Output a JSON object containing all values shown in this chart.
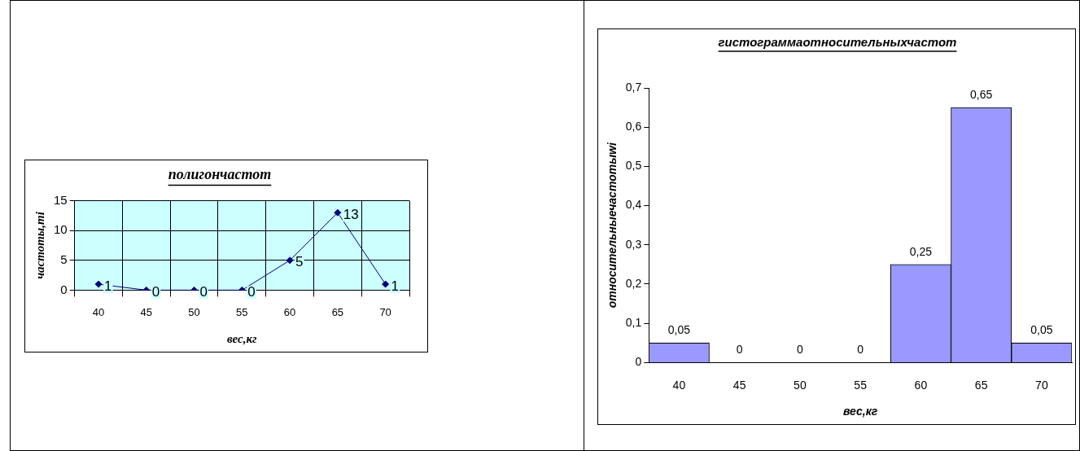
{
  "chart_data": [
    {
      "type": "line",
      "title": "полигончастот",
      "xlabel": "вес,кг",
      "ylabel": "частоты,mi",
      "categories": [
        "40",
        "45",
        "50",
        "55",
        "60",
        "65",
        "70"
      ],
      "series": [
        {
          "color": "#000080",
          "values": [
            1,
            0,
            0,
            0,
            5,
            13,
            1
          ]
        }
      ],
      "ylim": [
        0,
        15
      ],
      "yticks": [
        0,
        5,
        10,
        15
      ],
      "grid": true,
      "marker": "diamond",
      "data_labels": true,
      "legend": false
    },
    {
      "type": "bar",
      "title": "гистограммаотносительныхчастот",
      "xlabel": "вес,кг",
      "ylabel": "относительныечастотыwi",
      "categories": [
        "40",
        "45",
        "50",
        "55",
        "60",
        "65",
        "70"
      ],
      "series": [
        {
          "color": "#9999ff",
          "values": [
            0.05,
            0,
            0,
            0,
            0.25,
            0.65,
            0.05
          ],
          "value_labels": [
            "0,05",
            "0",
            "0",
            "0",
            "0,25",
            "0,65",
            "0,05"
          ]
        }
      ],
      "ylim": [
        0,
        0.7
      ],
      "yticks": [
        0,
        {
          "value": 0.1,
          "label": "0,1"
        },
        {
          "value": 0.2,
          "label": "0,2"
        },
        {
          "value": 0.3,
          "label": "0,3"
        },
        {
          "value": 0.4,
          "label": "0,4"
        },
        {
          "value": 0.5,
          "label": "0,5"
        },
        {
          "value": 0.6,
          "label": "0,6"
        },
        {
          "value": 0.7,
          "label": "0,7"
        }
      ],
      "grid": false,
      "legend": false
    }
  ]
}
